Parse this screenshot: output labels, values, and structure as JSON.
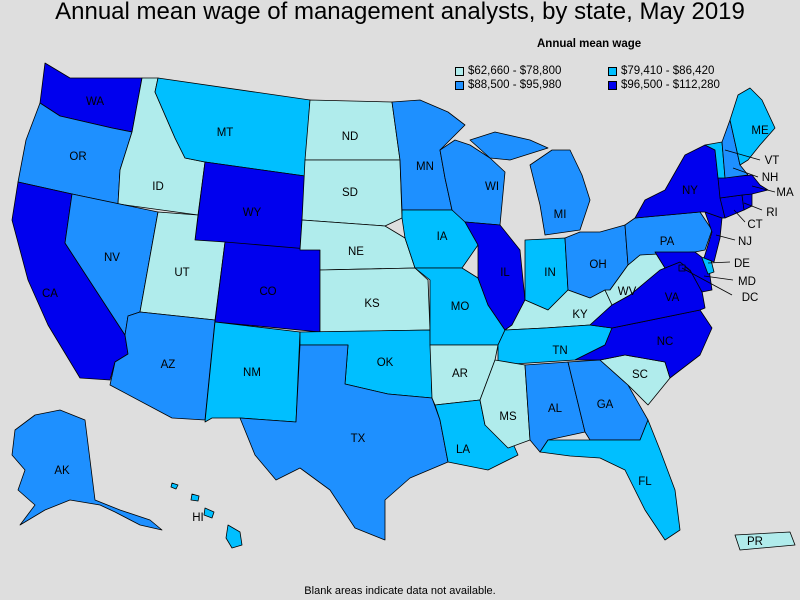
{
  "title": "Annual mean wage of management analysts, by state, May 2019",
  "legend": {
    "title": "Annual mean wage",
    "items": [
      {
        "label": "$62,660 - $78,800",
        "color": "#b0ecec"
      },
      {
        "label": "$79,410 - $86,420",
        "color": "#00bfff"
      },
      {
        "label": "$88,500 - $95,980",
        "color": "#1e90ff"
      },
      {
        "label": "$96,500 - $112,280",
        "color": "#0000ee"
      }
    ]
  },
  "note": "Blank areas indicate data not available.",
  "states": {
    "WA": {
      "label": "WA",
      "bin": 3
    },
    "OR": {
      "label": "OR",
      "bin": 2
    },
    "CA": {
      "label": "CA",
      "bin": 3
    },
    "ID": {
      "label": "ID",
      "bin": 0
    },
    "NV": {
      "label": "NV",
      "bin": 2
    },
    "MT": {
      "label": "MT",
      "bin": 1
    },
    "WY": {
      "label": "WY",
      "bin": 3
    },
    "UT": {
      "label": "UT",
      "bin": 0
    },
    "AZ": {
      "label": "AZ",
      "bin": 2
    },
    "CO": {
      "label": "CO",
      "bin": 3
    },
    "NM": {
      "label": "NM",
      "bin": 1
    },
    "ND": {
      "label": "ND",
      "bin": 0
    },
    "SD": {
      "label": "SD",
      "bin": 0
    },
    "NE": {
      "label": "NE",
      "bin": 0
    },
    "KS": {
      "label": "KS",
      "bin": 0
    },
    "OK": {
      "label": "OK",
      "bin": 1
    },
    "TX": {
      "label": "TX",
      "bin": 2
    },
    "MN": {
      "label": "MN",
      "bin": 2
    },
    "IA": {
      "label": "IA",
      "bin": 1
    },
    "MO": {
      "label": "MO",
      "bin": 1
    },
    "AR": {
      "label": "AR",
      "bin": 0
    },
    "LA": {
      "label": "LA",
      "bin": 1
    },
    "WI": {
      "label": "WI",
      "bin": 2
    },
    "IL": {
      "label": "IL",
      "bin": 3
    },
    "MI": {
      "label": "MI",
      "bin": 2
    },
    "IN": {
      "label": "IN",
      "bin": 1
    },
    "OH": {
      "label": "OH",
      "bin": 2
    },
    "KY": {
      "label": "KY",
      "bin": 0
    },
    "TN": {
      "label": "TN",
      "bin": 1
    },
    "MS": {
      "label": "MS",
      "bin": 0
    },
    "AL": {
      "label": "AL",
      "bin": 2
    },
    "GA": {
      "label": "GA",
      "bin": 2
    },
    "FL": {
      "label": "FL",
      "bin": 1
    },
    "SC": {
      "label": "SC",
      "bin": 0
    },
    "NC": {
      "label": "NC",
      "bin": 3
    },
    "VA": {
      "label": "VA",
      "bin": 3
    },
    "WV": {
      "label": "WV",
      "bin": 0
    },
    "PA": {
      "label": "PA",
      "bin": 2
    },
    "NY": {
      "label": "NY",
      "bin": 3
    },
    "VT": {
      "label": "VT",
      "bin": 1
    },
    "NH": {
      "label": "NH",
      "bin": 2
    },
    "ME": {
      "label": "ME",
      "bin": 1
    },
    "MA": {
      "label": "MA",
      "bin": 3
    },
    "RI": {
      "label": "RI",
      "bin": 3
    },
    "CT": {
      "label": "CT",
      "bin": 3
    },
    "NJ": {
      "label": "NJ",
      "bin": 3
    },
    "DE": {
      "label": "DE",
      "bin": 1
    },
    "MD": {
      "label": "MD",
      "bin": 3
    },
    "DC": {
      "label": "DC",
      "bin": 3
    },
    "AK": {
      "label": "AK",
      "bin": 2
    },
    "HI": {
      "label": "HI",
      "bin": 1
    },
    "PR": {
      "label": "PR",
      "bin": 0
    }
  }
}
